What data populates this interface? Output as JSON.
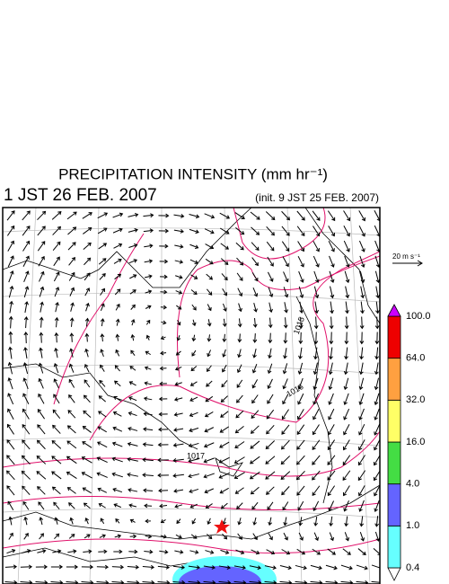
{
  "title": "PRECIPITATION INTENSITY (mm hr⁻¹)",
  "valid_time": "1 JST 26 FEB. 2007",
  "init_time": "(init. 9 JST 25 FEB. 2007)",
  "reference_vector": "20 m s⁻¹",
  "contour_labels": [
    "1017",
    "1016",
    "1015"
  ],
  "colorbar": {
    "levels": [
      0.4,
      {
        "value": 1,
        "label": "1.0"
      },
      {
        "value": 4,
        "label": "4.0"
      },
      {
        "value": 16,
        "label": "16.0"
      },
      {
        "value": 32,
        "label": "32.0"
      },
      {
        "value": 64,
        "label": "64.0"
      },
      {
        "value": 100,
        "label": "100.0"
      }
    ],
    "colors": [
      "#ffffff",
      "#66ffff",
      "#6464ff",
      "#44dd44",
      "#ffff66",
      "#ffa040",
      "#ee0000",
      "#cc00ff"
    ]
  }
}
